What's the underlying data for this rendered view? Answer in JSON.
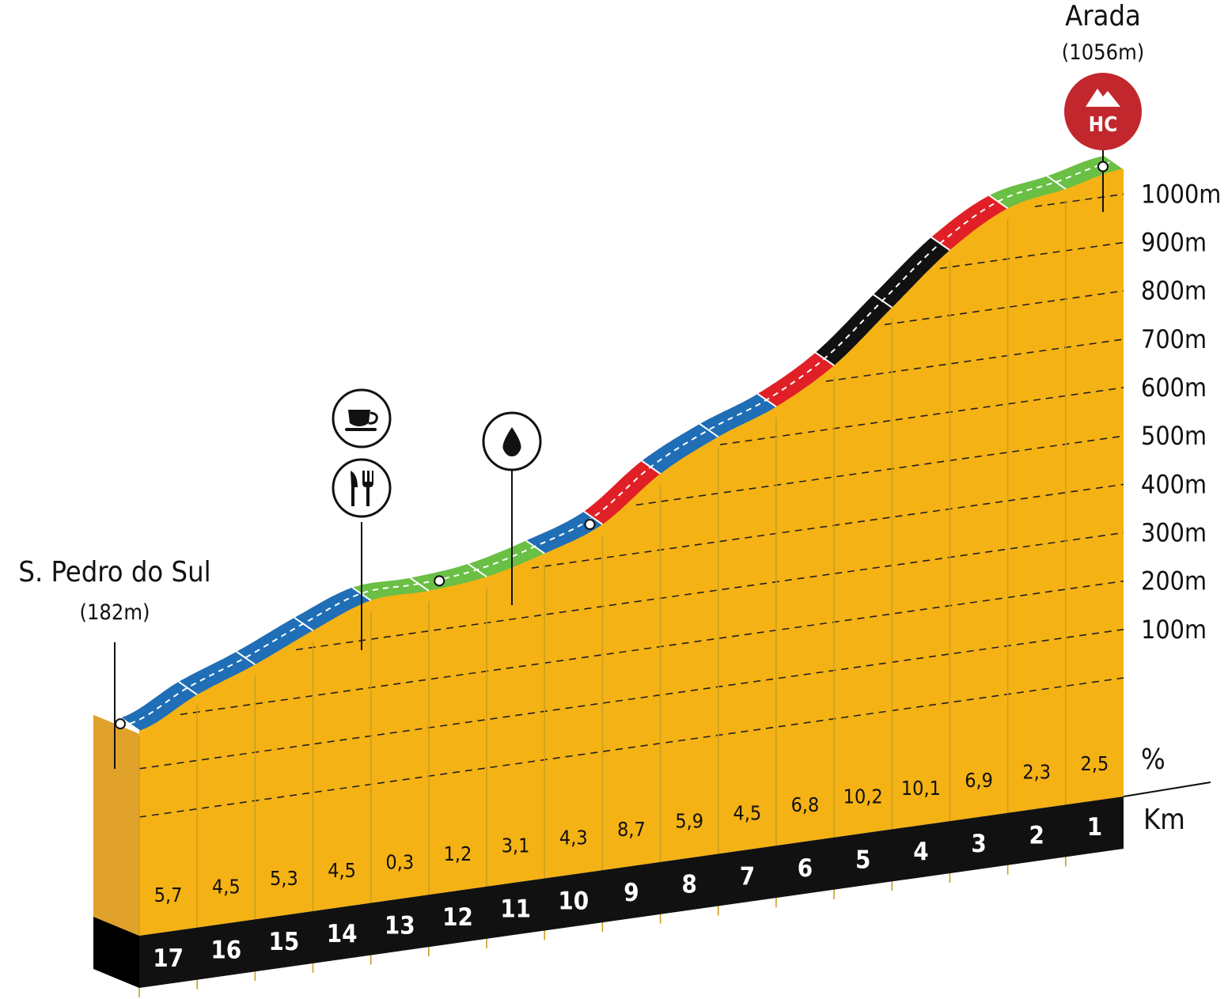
{
  "chart_data": {
    "type": "area",
    "start": {
      "name": "S. Pedro do Sul",
      "elevation_label": "(182m)",
      "elevation": 182
    },
    "summit": {
      "name": "Arada",
      "elevation_label": "(1056m)",
      "elevation": 1056,
      "category": "HC"
    },
    "altitude_ticks": [
      {
        "value": 100,
        "label": "100m"
      },
      {
        "value": 200,
        "label": "200m"
      },
      {
        "value": 300,
        "label": "300m"
      },
      {
        "value": 400,
        "label": "400m"
      },
      {
        "value": 500,
        "label": "500m"
      },
      {
        "value": 600,
        "label": "600m"
      },
      {
        "value": 700,
        "label": "700m"
      },
      {
        "value": 800,
        "label": "800m"
      },
      {
        "value": 900,
        "label": "900m"
      },
      {
        "value": 1000,
        "label": "1000m"
      }
    ],
    "gradient_axis_label": "%",
    "km_axis_label": "Km",
    "segments": [
      {
        "km": "17",
        "gradient": "5,7",
        "color": "#1f6eb6"
      },
      {
        "km": "16",
        "gradient": "4,5",
        "color": "#1f6eb6"
      },
      {
        "km": "15",
        "gradient": "5,3",
        "color": "#1f6eb6"
      },
      {
        "km": "14",
        "gradient": "4,5",
        "color": "#1f6eb6"
      },
      {
        "km": "13",
        "gradient": "0,3",
        "color": "#6abf45"
      },
      {
        "km": "12",
        "gradient": "1,2",
        "color": "#6abf45"
      },
      {
        "km": "11",
        "gradient": "3,1",
        "color": "#6abf45"
      },
      {
        "km": "10",
        "gradient": "4,3",
        "color": "#1f6eb6"
      },
      {
        "km": "9",
        "gradient": "8,7",
        "color": "#e02026"
      },
      {
        "km": "8",
        "gradient": "5,9",
        "color": "#1f6eb6"
      },
      {
        "km": "7",
        "gradient": "4,5",
        "color": "#1f6eb6"
      },
      {
        "km": "6",
        "gradient": "6,8",
        "color": "#e02026"
      },
      {
        "km": "5",
        "gradient": "10,2",
        "color": "#111111"
      },
      {
        "km": "4",
        "gradient": "10,1",
        "color": "#111111"
      },
      {
        "km": "3",
        "gradient": "6,9",
        "color": "#e02026"
      },
      {
        "km": "2",
        "gradient": "2,3",
        "color": "#6abf45"
      },
      {
        "km": "1",
        "gradient": "2,5",
        "color": "#6abf45"
      }
    ],
    "points_of_interest": [
      {
        "type": "coffee-icon",
        "km_from_start": 4.8
      },
      {
        "type": "restaurant-icon",
        "km_from_start": 4.8
      },
      {
        "type": "water-icon",
        "km_from_start": 7.4
      }
    ],
    "colors": {
      "fill": "#f5b214",
      "side": "#e0a22a",
      "base": "#111111",
      "summit_marker": "#c1272d"
    }
  }
}
